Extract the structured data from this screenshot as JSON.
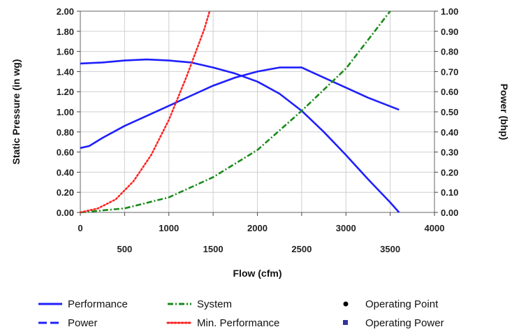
{
  "chart_data": {
    "type": "line",
    "xlabel": "Flow (cfm)",
    "ylabel_left": "Static Pressure (in wg)",
    "ylabel_right": "Power (bhp)",
    "xlim": [
      0,
      4000
    ],
    "ylim_left": [
      0,
      2.0
    ],
    "ylim_right": [
      0,
      1.0
    ],
    "grid": true,
    "x_ticks_top": [
      "0",
      "1000",
      "2000",
      "3000",
      "4000"
    ],
    "x_ticks_top_values": [
      0,
      1000,
      2000,
      3000,
      4000
    ],
    "x_ticks_bottom": [
      "500",
      "1500",
      "2500",
      "3500"
    ],
    "x_ticks_bottom_values": [
      500,
      1500,
      2500,
      3500
    ],
    "y_ticks_left": [
      "0.00",
      "0.20",
      "0.40",
      "0.60",
      "0.80",
      "1.00",
      "1.20",
      "1.40",
      "1.60",
      "1.80",
      "2.00"
    ],
    "y_ticks_right": [
      "0.00",
      "0.10",
      "0.20",
      "0.30",
      "0.40",
      "0.50",
      "0.60",
      "0.70",
      "0.80",
      "0.90",
      "1.00"
    ],
    "series": [
      {
        "name": "Performance",
        "axis": "left",
        "color": "#1f1fff",
        "style": "solid",
        "points": [
          [
            0,
            1.48
          ],
          [
            250,
            1.49
          ],
          [
            500,
            1.51
          ],
          [
            750,
            1.52
          ],
          [
            1000,
            1.51
          ],
          [
            1250,
            1.49
          ],
          [
            1500,
            1.44
          ],
          [
            1750,
            1.38
          ],
          [
            2000,
            1.3
          ],
          [
            2250,
            1.18
          ],
          [
            2500,
            1.01
          ],
          [
            2750,
            0.8
          ],
          [
            3000,
            0.57
          ],
          [
            3250,
            0.33
          ],
          [
            3500,
            0.1
          ],
          [
            3600,
            0.0
          ]
        ]
      },
      {
        "name": "Power",
        "axis": "right",
        "color": "#1f1fff",
        "style": "dashed",
        "points": [
          [
            0,
            0.32
          ],
          [
            100,
            0.33
          ],
          [
            250,
            0.37
          ],
          [
            500,
            0.43
          ],
          [
            750,
            0.48
          ],
          [
            1000,
            0.53
          ],
          [
            1250,
            0.58
          ],
          [
            1500,
            0.63
          ],
          [
            1750,
            0.67
          ],
          [
            2000,
            0.7
          ],
          [
            2250,
            0.72
          ],
          [
            2500,
            0.72
          ],
          [
            2600,
            0.7
          ],
          [
            3000,
            0.62
          ],
          [
            3250,
            0.57
          ],
          [
            3600,
            0.51
          ]
        ]
      },
      {
        "name": "System",
        "axis": "left",
        "color": "#1a8a1a",
        "style": "dashdot",
        "points": [
          [
            0,
            0.0
          ],
          [
            500,
            0.04
          ],
          [
            1000,
            0.15
          ],
          [
            1500,
            0.35
          ],
          [
            2000,
            0.62
          ],
          [
            2500,
            1.01
          ],
          [
            3000,
            1.43
          ],
          [
            3500,
            2.0
          ]
        ]
      },
      {
        "name": "Min. Performance",
        "axis": "left",
        "color": "#ff2020",
        "style": "dotted",
        "points": [
          [
            0,
            0.0
          ],
          [
            200,
            0.04
          ],
          [
            400,
            0.13
          ],
          [
            600,
            0.31
          ],
          [
            800,
            0.57
          ],
          [
            1000,
            0.92
          ],
          [
            1200,
            1.35
          ],
          [
            1400,
            1.82
          ],
          [
            1460,
            2.0
          ]
        ]
      }
    ]
  },
  "legend": {
    "items": [
      {
        "label": "Performance",
        "style": "solid-line",
        "color": "#1f1fff"
      },
      {
        "label": "System",
        "style": "dashdot-line",
        "color": "#1a8a1a"
      },
      {
        "label": "Operating Point",
        "style": "dot",
        "color": "#000000"
      },
      {
        "label": "Power",
        "style": "dashed-line",
        "color": "#1f1fff"
      },
      {
        "label": "Min. Performance",
        "style": "dotted-line",
        "color": "#ff2020"
      },
      {
        "label": "Operating Power",
        "style": "square",
        "color": "#333399"
      }
    ]
  }
}
